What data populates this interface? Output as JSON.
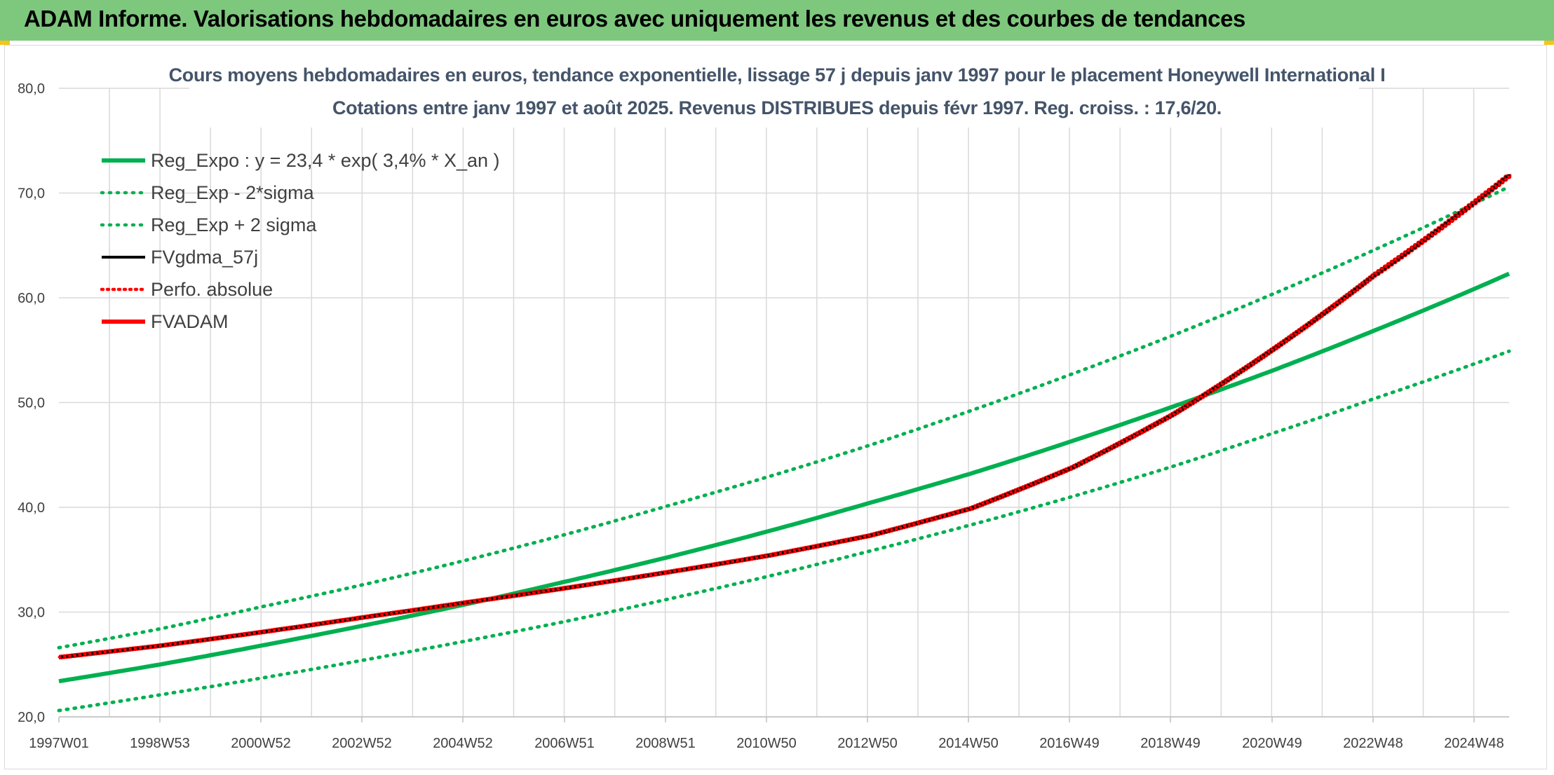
{
  "banner": {
    "title": "ADAM Informe. Valorisations hebdomadaires en euros avec uniquement les revenus et des courbes de tendances",
    "background": "#7dc87d"
  },
  "chart_data": {
    "type": "line",
    "title": "Cours moyens hebdomadaires en euros, tendance exponentielle, lissage 57 j depuis janv 1997 pour le placement Honeywell International I",
    "subtitle": "Cotations entre janv 1997 et août 2025. Revenus DISTRIBUES depuis févr 1997. Reg. croiss. : 17,6/20.",
    "xlabel": "",
    "ylabel": "",
    "x_ticks": [
      "1997W01",
      "1998W53",
      "2000W52",
      "2002W52",
      "2004W52",
      "2006W51",
      "2008W51",
      "2010W50",
      "2012W50",
      "2014W50",
      "2016W49",
      "2018W49",
      "2020W49",
      "2022W48",
      "2024W48"
    ],
    "xlim": [
      1997.0,
      2025.65
    ],
    "ylim": [
      20,
      80
    ],
    "y_ticks": [
      "20,0",
      "30,0",
      "40,0",
      "50,0",
      "60,0",
      "70,0",
      "80,0"
    ],
    "grid": true,
    "legend_position": "top-left",
    "series": [
      {
        "name": "Reg_Expo : y = 23,4 * exp( 3,4% *  X_an )",
        "color": "#00b050",
        "style": "solid",
        "x": [
          1997.0,
          1999.0,
          2001.0,
          2003.0,
          2005.0,
          2007.0,
          2009.0,
          2011.0,
          2013.0,
          2015.0,
          2017.0,
          2019.0,
          2021.0,
          2023.0,
          2025.65
        ],
        "values": [
          23.4,
          25.0,
          26.8,
          28.7,
          30.7,
          32.9,
          35.2,
          37.7,
          40.4,
          43.2,
          46.3,
          49.6,
          53.1,
          56.9,
          62.3
        ]
      },
      {
        "name": "Reg_Exp - 2*sigma",
        "color": "#00b050",
        "style": "dotted",
        "x": [
          1997.0,
          1999.0,
          2001.0,
          2003.0,
          2005.0,
          2007.0,
          2009.0,
          2011.0,
          2013.0,
          2015.0,
          2017.0,
          2019.0,
          2021.0,
          2023.0,
          2025.65
        ],
        "values": [
          20.6,
          22.1,
          23.7,
          25.4,
          27.2,
          29.1,
          31.2,
          33.4,
          35.8,
          38.3,
          41.0,
          43.9,
          47.1,
          50.4,
          54.9
        ]
      },
      {
        "name": "Reg_Exp + 2 sigma",
        "color": "#00b050",
        "style": "dotted",
        "x": [
          1997.0,
          1999.0,
          2001.0,
          2003.0,
          2005.0,
          2007.0,
          2009.0,
          2011.0,
          2013.0,
          2015.0,
          2017.0,
          2019.0,
          2021.0,
          2023.0,
          2025.65
        ],
        "values": [
          26.6,
          28.4,
          30.5,
          32.6,
          34.9,
          37.4,
          40.1,
          42.9,
          45.9,
          49.2,
          52.7,
          56.4,
          60.4,
          64.6,
          70.6
        ]
      },
      {
        "name": "FVgdma_57j",
        "color": "#000000",
        "style": "solid",
        "x": [
          1997.0,
          1999.0,
          2001.0,
          2003.0,
          2005.0,
          2007.0,
          2009.0,
          2011.0,
          2013.0,
          2015.0,
          2017.0,
          2019.0,
          2021.0,
          2023.0,
          2025.65
        ],
        "values": [
          25.7,
          26.8,
          28.1,
          29.5,
          30.9,
          32.3,
          33.8,
          35.4,
          37.3,
          39.9,
          43.8,
          48.9,
          55.2,
          62.3,
          71.8
        ]
      },
      {
        "name": "Perfo. absolue",
        "color": "#ff0000",
        "style": "dotted",
        "x": [
          1997.0,
          1999.0,
          2001.0,
          2003.0,
          2005.0,
          2007.0,
          2009.0,
          2011.0,
          2013.0,
          2015.0,
          2017.0,
          2019.0,
          2021.0,
          2023.0,
          2025.65
        ],
        "values": [
          25.7,
          26.8,
          28.1,
          29.5,
          30.9,
          32.3,
          33.8,
          35.4,
          37.3,
          39.9,
          43.8,
          48.9,
          55.2,
          62.3,
          71.8
        ]
      },
      {
        "name": "FVADAM",
        "color": "#ff0000",
        "style": "solid",
        "x": [
          1997.0,
          1999.0,
          2001.0,
          2003.0,
          2005.0,
          2007.0,
          2009.0,
          2011.0,
          2013.0,
          2015.0,
          2017.0,
          2019.0,
          2021.0,
          2023.0,
          2025.65
        ],
        "values": [
          25.7,
          26.8,
          28.1,
          29.5,
          30.9,
          32.3,
          33.8,
          35.4,
          37.3,
          39.9,
          43.8,
          48.9,
          55.2,
          62.3,
          71.8
        ]
      }
    ]
  }
}
